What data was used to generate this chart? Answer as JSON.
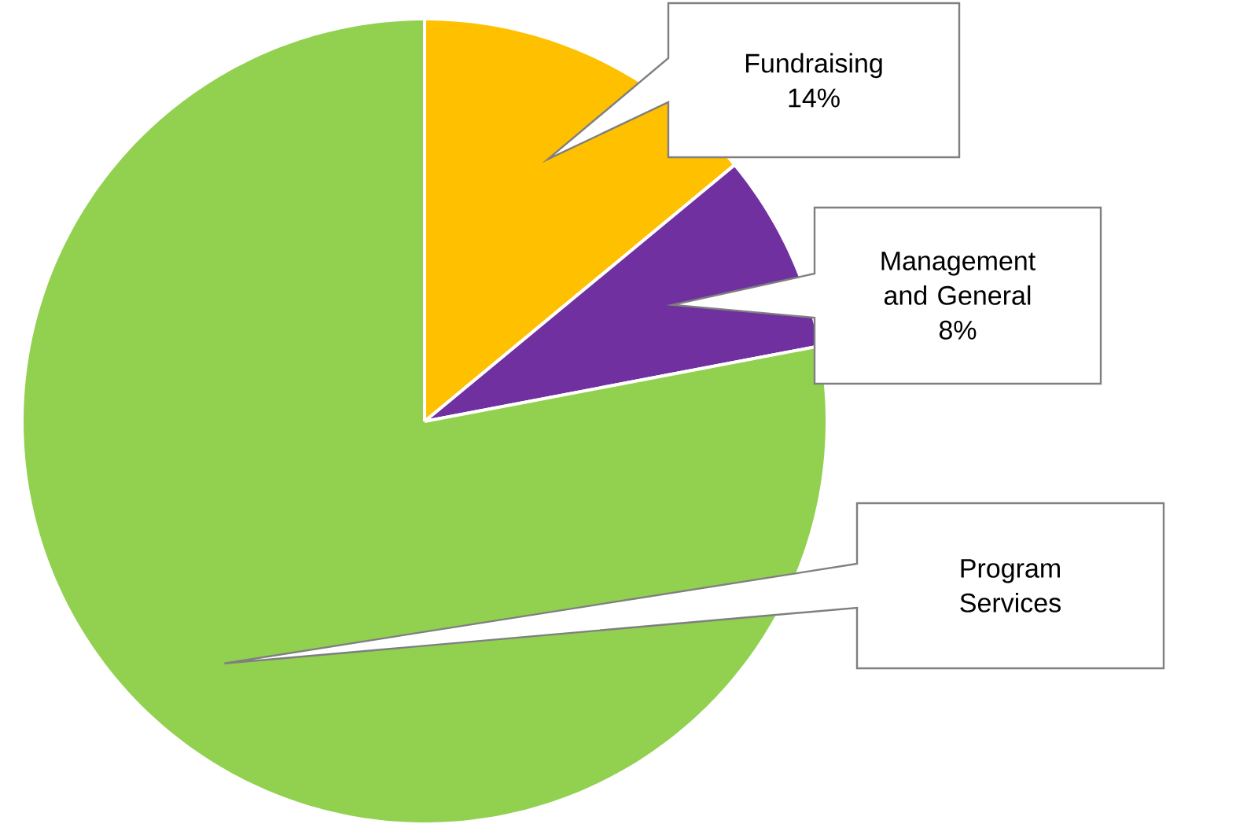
{
  "chart_data": {
    "type": "pie",
    "categories": [
      "Fundraising",
      "Management and General",
      "Program Services"
    ],
    "values": [
      14,
      8,
      78
    ],
    "value_labels": [
      "14%",
      "8%",
      null
    ],
    "colors": [
      "#ffc000",
      "#7030a0",
      "#92d050"
    ]
  }
}
